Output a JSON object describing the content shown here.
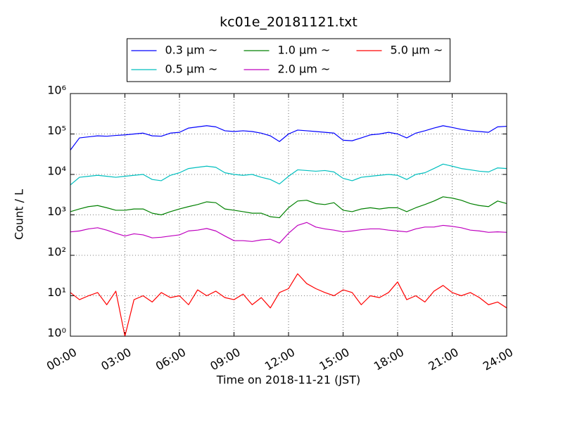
{
  "chart_data": {
    "type": "line",
    "title": "kc01e_20181121.txt",
    "x_label": "Time on 2018-11-21 (JST)",
    "y_label": "Count / L",
    "log_y": true,
    "grid": true,
    "legend_loc": "upper center",
    "legend_ncol": 3,
    "x": [
      "00:00",
      "00:30",
      "01:00",
      "01:30",
      "02:00",
      "02:30",
      "03:00",
      "03:30",
      "04:00",
      "04:30",
      "05:00",
      "05:30",
      "06:00",
      "06:30",
      "07:00",
      "07:30",
      "08:00",
      "08:30",
      "09:00",
      "09:30",
      "10:00",
      "10:30",
      "11:00",
      "11:30",
      "12:00",
      "12:30",
      "13:00",
      "13:30",
      "14:00",
      "14:30",
      "15:00",
      "15:30",
      "16:00",
      "16:30",
      "17:00",
      "17:30",
      "18:00",
      "18:30",
      "19:00",
      "19:30",
      "20:00",
      "20:30",
      "21:00",
      "21:30",
      "22:00",
      "22:30",
      "23:00",
      "23:30",
      "24:00"
    ],
    "xlim": [
      "00:00",
      "24:00"
    ],
    "xticks": [
      "00:00",
      "03:00",
      "06:00",
      "09:00",
      "12:00",
      "15:00",
      "18:00",
      "21:00",
      "24:00"
    ],
    "ylim": [
      1,
      1000000
    ],
    "yticks": [
      {
        "value": 1,
        "label": "10⁰"
      },
      {
        "value": 10,
        "label": "10¹"
      },
      {
        "value": 100,
        "label": "10²"
      },
      {
        "value": 1000,
        "label": "10³"
      },
      {
        "value": 10000,
        "label": "10⁴"
      },
      {
        "value": 100000,
        "label": "10⁵"
      },
      {
        "value": 1000000,
        "label": "10⁶"
      }
    ],
    "series": [
      {
        "name": "0.3 μm ~",
        "color": "#0000ff",
        "values": [
          40000,
          80000,
          85000,
          90000,
          88000,
          92000,
          95000,
          100000,
          105000,
          90000,
          88000,
          105000,
          110000,
          140000,
          150000,
          160000,
          150000,
          120000,
          115000,
          120000,
          115000,
          105000,
          90000,
          65000,
          100000,
          125000,
          120000,
          115000,
          110000,
          105000,
          70000,
          68000,
          80000,
          95000,
          100000,
          110000,
          100000,
          80000,
          105000,
          120000,
          140000,
          160000,
          145000,
          130000,
          120000,
          115000,
          110000,
          150000,
          155000
        ]
      },
      {
        "name": "0.5 μm ~",
        "color": "#00bfbf",
        "values": [
          5500,
          8500,
          9000,
          9500,
          9000,
          8500,
          9000,
          9500,
          10000,
          7500,
          7000,
          9500,
          11000,
          14000,
          15000,
          16000,
          15000,
          11000,
          10000,
          9500,
          10000,
          8500,
          7500,
          5800,
          9000,
          13000,
          12500,
          12000,
          12500,
          11500,
          8000,
          7000,
          8500,
          9000,
          9500,
          10000,
          9500,
          7500,
          10000,
          11000,
          14000,
          18000,
          16000,
          14000,
          13000,
          12000,
          11500,
          14500,
          14000
        ]
      },
      {
        "name": "1.0 μm ~",
        "color": "#008000",
        "values": [
          1200,
          1400,
          1600,
          1700,
          1500,
          1300,
          1300,
          1400,
          1400,
          1100,
          1000,
          1200,
          1400,
          1600,
          1800,
          2100,
          2000,
          1400,
          1300,
          1200,
          1100,
          1100,
          900,
          850,
          1500,
          2200,
          2300,
          1900,
          1800,
          2000,
          1300,
          1200,
          1400,
          1500,
          1400,
          1500,
          1500,
          1200,
          1500,
          1800,
          2200,
          2800,
          2600,
          2300,
          1900,
          1700,
          1600,
          2200,
          1900
        ]
      },
      {
        "name": "2.0 μm ~",
        "color": "#bf00bf",
        "values": [
          380,
          400,
          450,
          480,
          420,
          350,
          300,
          340,
          320,
          270,
          280,
          300,
          320,
          400,
          420,
          460,
          400,
          300,
          230,
          230,
          220,
          240,
          250,
          200,
          350,
          550,
          650,
          500,
          450,
          420,
          380,
          400,
          430,
          450,
          450,
          420,
          400,
          380,
          450,
          500,
          500,
          550,
          520,
          480,
          420,
          400,
          370,
          380,
          370
        ]
      },
      {
        "name": "5.0 μm ~",
        "color": "#ff0000",
        "values": [
          12,
          8,
          10,
          12,
          6,
          13,
          1,
          8,
          10,
          7,
          12,
          9,
          10,
          6,
          14,
          10,
          13,
          9,
          8,
          11,
          6,
          9,
          5,
          12,
          15,
          35,
          20,
          15,
          12,
          10,
          14,
          12,
          6,
          10,
          9,
          12,
          22,
          8,
          10,
          7,
          13,
          18,
          12,
          10,
          12,
          9,
          6,
          7,
          5
        ]
      }
    ]
  }
}
